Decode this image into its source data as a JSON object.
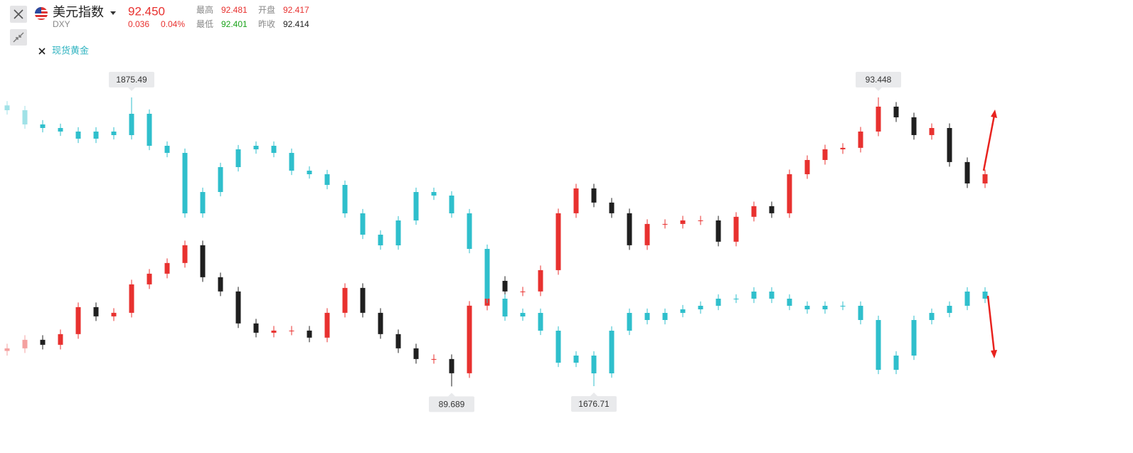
{
  "header": {
    "symbol_code": "DXY",
    "price": "92.450",
    "change": "0.036",
    "change_pct": "0.04%",
    "high_label": "最高",
    "high": "92.481",
    "open_label": "开盘",
    "open": "92.417",
    "low_label": "最低",
    "low": "92.401",
    "prev_label": "昨收",
    "prev": "92.414"
  },
  "chart_data": {
    "type": "candlestick",
    "series": [
      {
        "name": "美元指数",
        "up_color": "#e8312f",
        "down_color": "#1f1f1f",
        "ylim": [
          89.35,
          93.79
        ],
        "open": [
          90.15,
          90.184,
          90.295,
          90.23,
          90.369,
          90.72,
          90.6,
          90.646,
          91.016,
          91.155,
          91.294,
          91.525,
          91.109,
          90.924,
          90.508,
          90.387,
          90.415,
          90.415,
          90.323,
          90.646,
          90.97,
          90.646,
          90.369,
          90.184,
          90.045,
          90.045,
          89.86,
          90.739,
          91.062,
          90.924,
          90.924,
          91.201,
          91.941,
          92.264,
          92.08,
          91.941,
          91.525,
          91.802,
          91.802,
          91.848,
          91.848,
          91.571,
          91.895,
          92.033,
          91.941,
          92.449,
          92.634,
          92.773,
          92.792,
          93.004,
          93.328,
          93.189,
          92.958,
          93.05,
          92.607,
          92.329
        ],
        "high": [
          90.244,
          90.355,
          90.355,
          90.429,
          90.78,
          90.78,
          90.706,
          91.076,
          91.215,
          91.354,
          91.585,
          91.585,
          91.169,
          90.984,
          90.568,
          90.475,
          90.475,
          90.475,
          90.706,
          91.03,
          91.03,
          90.706,
          90.429,
          90.244,
          90.105,
          90.105,
          90.799,
          91.122,
          91.122,
          90.984,
          91.261,
          92.001,
          92.324,
          92.324,
          92.14,
          92.001,
          91.862,
          91.862,
          91.908,
          91.908,
          91.908,
          91.955,
          92.093,
          92.093,
          92.509,
          92.694,
          92.833,
          92.852,
          93.064,
          93.448,
          93.388,
          93.249,
          93.11,
          93.11,
          92.667,
          92.509
        ],
        "low": [
          90.09,
          90.124,
          90.17,
          90.17,
          90.309,
          90.54,
          90.54,
          90.586,
          90.956,
          91.095,
          91.234,
          91.049,
          90.864,
          90.448,
          90.327,
          90.327,
          90.355,
          90.263,
          90.263,
          90.586,
          90.586,
          90.309,
          90.124,
          89.985,
          89.985,
          89.689,
          89.8,
          90.679,
          90.864,
          90.864,
          90.864,
          91.141,
          91.881,
          92.02,
          91.881,
          91.465,
          91.465,
          91.742,
          91.742,
          91.788,
          91.511,
          91.511,
          91.835,
          91.881,
          91.881,
          92.389,
          92.574,
          92.713,
          92.732,
          92.944,
          93.129,
          92.898,
          92.898,
          92.547,
          92.269,
          92.269
        ],
        "close": [
          90.184,
          90.295,
          90.23,
          90.369,
          90.72,
          90.6,
          90.646,
          91.016,
          91.155,
          91.294,
          91.525,
          91.109,
          90.924,
          90.508,
          90.387,
          90.415,
          90.415,
          90.323,
          90.646,
          90.97,
          90.646,
          90.369,
          90.184,
          90.045,
          90.045,
          89.86,
          90.739,
          91.062,
          90.924,
          90.924,
          91.201,
          91.941,
          92.264,
          92.08,
          91.941,
          91.525,
          91.802,
          91.802,
          91.848,
          91.848,
          91.571,
          91.895,
          92.033,
          91.941,
          92.449,
          92.634,
          92.773,
          92.792,
          93.004,
          93.328,
          93.189,
          92.958,
          93.05,
          92.607,
          92.329,
          92.449
        ]
      },
      {
        "name": "现货黄金",
        "up_color": "#2fbfcc",
        "down_color": "#2fbfcc",
        "ylim": [
          1658.6,
          1893.6
        ],
        "open": [
          1870.0,
          1866.68,
          1856.89,
          1854.44,
          1851.99,
          1847.09,
          1851.99,
          1849.54,
          1864.23,
          1842.2,
          1837.3,
          1795.69,
          1810.37,
          1827.51,
          1839.75,
          1842.2,
          1837.3,
          1825.06,
          1822.61,
          1815.27,
          1795.69,
          1781.0,
          1773.65,
          1790.79,
          1810.37,
          1807.93,
          1795.69,
          1771.21,
          1736.94,
          1724.69,
          1727.14,
          1714.9,
          1692.87,
          1697.77,
          1685.53,
          1714.9,
          1727.14,
          1722.25,
          1727.14,
          1729.59,
          1732.04,
          1736.94,
          1736.94,
          1741.83,
          1736.94,
          1732.04,
          1729.59,
          1732.04,
          1732.04,
          1722.25,
          1687.98,
          1697.77,
          1722.25,
          1727.14,
          1732.04,
          1741.83
        ],
        "high": [
          1873.0,
          1869.68,
          1859.89,
          1857.44,
          1854.99,
          1854.99,
          1854.99,
          1875.49,
          1867.23,
          1845.2,
          1840.3,
          1813.37,
          1830.51,
          1842.75,
          1845.2,
          1845.2,
          1840.3,
          1828.06,
          1825.61,
          1818.27,
          1798.69,
          1784.0,
          1793.79,
          1813.37,
          1813.37,
          1810.93,
          1798.69,
          1774.21,
          1739.94,
          1730.14,
          1730.14,
          1717.9,
          1700.77,
          1700.77,
          1717.9,
          1730.14,
          1730.14,
          1730.14,
          1732.59,
          1735.04,
          1739.94,
          1739.94,
          1744.83,
          1744.83,
          1739.94,
          1735.04,
          1735.04,
          1735.04,
          1735.04,
          1725.25,
          1700.77,
          1725.25,
          1730.14,
          1735.04,
          1744.83,
          1744.83
        ],
        "low": [
          1863.68,
          1853.89,
          1851.44,
          1848.99,
          1844.09,
          1844.09,
          1846.54,
          1846.54,
          1839.2,
          1834.3,
          1792.69,
          1792.69,
          1807.37,
          1824.51,
          1836.75,
          1834.3,
          1822.06,
          1819.61,
          1812.27,
          1792.69,
          1778.0,
          1770.65,
          1770.65,
          1787.79,
          1804.93,
          1792.69,
          1768.21,
          1733.94,
          1721.69,
          1721.69,
          1711.9,
          1689.87,
          1689.87,
          1676.71,
          1682.53,
          1711.9,
          1719.25,
          1719.25,
          1724.14,
          1726.59,
          1729.04,
          1733.94,
          1733.94,
          1733.94,
          1729.04,
          1726.59,
          1726.59,
          1729.04,
          1719.25,
          1684.98,
          1684.98,
          1694.77,
          1719.25,
          1724.14,
          1729.04,
          1733.94
        ],
        "close": [
          1866.68,
          1856.89,
          1854.44,
          1851.99,
          1847.09,
          1851.99,
          1849.54,
          1864.23,
          1842.2,
          1837.3,
          1795.69,
          1810.37,
          1827.51,
          1839.75,
          1842.2,
          1837.3,
          1825.06,
          1822.61,
          1815.27,
          1795.69,
          1781.0,
          1773.65,
          1790.79,
          1810.37,
          1807.93,
          1795.69,
          1771.21,
          1736.94,
          1724.69,
          1727.14,
          1714.9,
          1692.87,
          1697.77,
          1685.53,
          1714.9,
          1727.14,
          1722.25,
          1727.14,
          1729.59,
          1732.04,
          1736.94,
          1736.94,
          1741.83,
          1736.94,
          1732.04,
          1729.59,
          1732.04,
          1732.04,
          1722.25,
          1687.98,
          1697.77,
          1722.25,
          1727.14,
          1732.04,
          1741.83,
          1736.94
        ]
      }
    ]
  }
}
